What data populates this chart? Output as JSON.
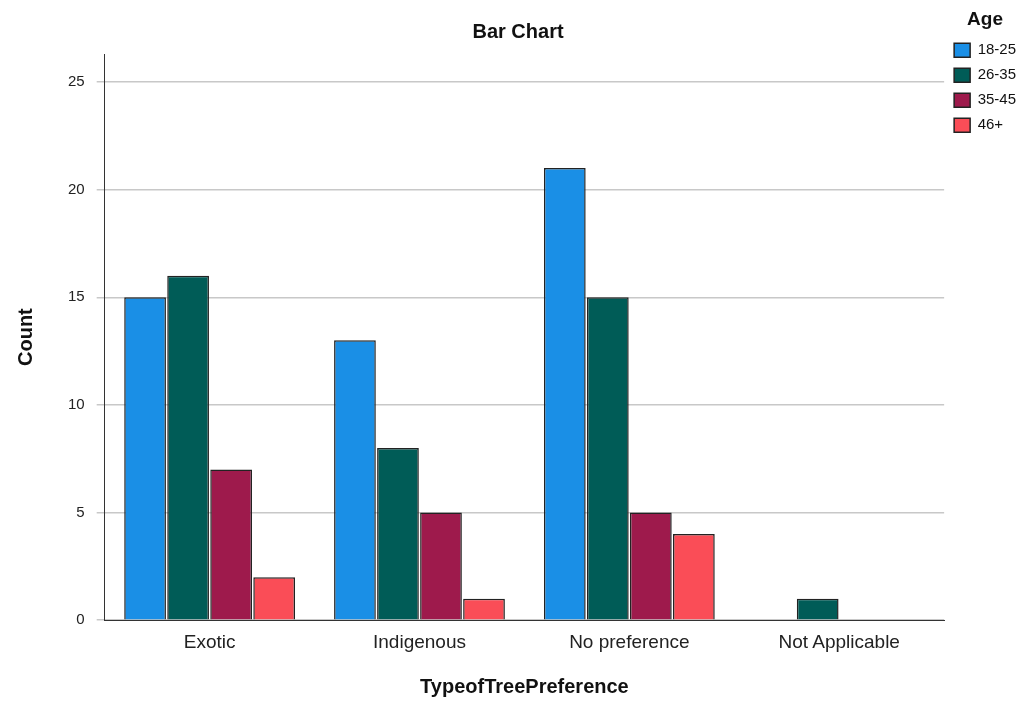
{
  "chart_data": {
    "type": "bar",
    "title": "Bar Chart",
    "xlabel": "TypeofTreePreference",
    "ylabel": "Count",
    "legend_title": "Age",
    "categories": [
      "Exotic",
      "Indigenous",
      "No preference",
      "Not Applicable"
    ],
    "series": [
      {
        "name": "18-25",
        "color": "#1a8fe6",
        "values": [
          15,
          13,
          21,
          null
        ]
      },
      {
        "name": "26-35",
        "color": "#005c57",
        "values": [
          16,
          8,
          15,
          1
        ]
      },
      {
        "name": "35-45",
        "color": "#9e1a4c",
        "values": [
          7,
          5,
          5,
          null
        ]
      },
      {
        "name": "46+",
        "color": "#fa4d57",
        "values": [
          2,
          1,
          4,
          null
        ]
      }
    ],
    "ylim": [
      0,
      26.3
    ],
    "yticks": [
      0,
      5,
      10,
      15,
      20,
      25
    ],
    "grid": "y",
    "legend": "top right"
  }
}
